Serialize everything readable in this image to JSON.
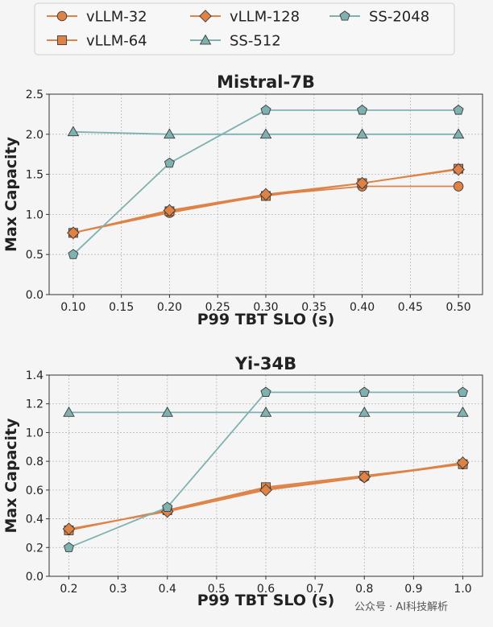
{
  "colors": {
    "vllm": "#DE8246",
    "ss": "#7FB1B1",
    "grid": "#b9b9b9"
  },
  "legend": [
    {
      "label": "vLLM-32",
      "color": "#DE8246",
      "marker": "circle"
    },
    {
      "label": "vLLM-64",
      "color": "#DE8246",
      "marker": "square"
    },
    {
      "label": "vLLM-128",
      "color": "#DE8246",
      "marker": "diamond"
    },
    {
      "label": "SS-512",
      "color": "#7FB1B1",
      "marker": "triangle"
    },
    {
      "label": "SS-2048",
      "color": "#7FB1B1",
      "marker": "pentagon"
    }
  ],
  "watermark": "公众号 · AI科技解析",
  "chart_data": [
    {
      "type": "line",
      "title": "Mistral-7B",
      "xlabel": "P99 TBT SLO (s)",
      "ylabel": "Max Capacity",
      "x": [
        0.1,
        0.2,
        0.3,
        0.4,
        0.5
      ],
      "xticks": [
        "0.10",
        "0.15",
        "0.20",
        "0.25",
        "0.30",
        "0.35",
        "0.40",
        "0.45",
        "0.50"
      ],
      "xtick_values": [
        0.1,
        0.15,
        0.2,
        0.25,
        0.3,
        0.35,
        0.4,
        0.45,
        0.5
      ],
      "yticks": [
        "0.0",
        "0.5",
        "1.0",
        "1.5",
        "2.0",
        "2.5"
      ],
      "ytick_values": [
        0,
        0.5,
        1.0,
        1.5,
        2.0,
        2.5
      ],
      "xlim": [
        0.075,
        0.525
      ],
      "ylim": [
        0,
        2.5
      ],
      "grid": true,
      "series": [
        {
          "name": "vLLM-32",
          "marker": "circle",
          "values": [
            0.77,
            1.02,
            1.24,
            1.35,
            1.35
          ]
        },
        {
          "name": "vLLM-64",
          "marker": "square",
          "values": [
            0.77,
            1.04,
            1.23,
            1.39,
            1.57
          ]
        },
        {
          "name": "vLLM-128",
          "marker": "diamond",
          "values": [
            0.77,
            1.05,
            1.25,
            1.39,
            1.56
          ]
        },
        {
          "name": "SS-512",
          "marker": "triangle",
          "values": [
            2.03,
            2.0,
            2.0,
            2.0,
            2.0
          ]
        },
        {
          "name": "SS-2048",
          "marker": "pentagon",
          "values": [
            0.5,
            1.64,
            2.3,
            2.3,
            2.3
          ]
        }
      ]
    },
    {
      "type": "line",
      "title": "Yi-34B",
      "xlabel": "P99 TBT SLO (s)",
      "ylabel": "Max Capacity",
      "x": [
        0.2,
        0.4,
        0.6,
        0.8,
        1.0
      ],
      "xticks": [
        "0.2",
        "0.3",
        "0.4",
        "0.5",
        "0.6",
        "0.7",
        "0.8",
        "0.9",
        "1.0"
      ],
      "xtick_values": [
        0.2,
        0.3,
        0.4,
        0.5,
        0.6,
        0.7,
        0.8,
        0.9,
        1.0
      ],
      "yticks": [
        "0.0",
        "0.2",
        "0.4",
        "0.6",
        "0.8",
        "1.0",
        "1.2",
        "1.4"
      ],
      "ytick_values": [
        0,
        0.2,
        0.4,
        0.6,
        0.8,
        1.0,
        1.2,
        1.4
      ],
      "xlim": [
        0.16,
        1.04
      ],
      "ylim": [
        0,
        1.4
      ],
      "grid": true,
      "series": [
        {
          "name": "vLLM-32",
          "marker": "circle",
          "values": [
            0.32,
            0.46,
            0.61,
            0.69,
            0.78
          ]
        },
        {
          "name": "vLLM-64",
          "marker": "square",
          "values": [
            0.32,
            0.46,
            0.62,
            0.7,
            0.78
          ]
        },
        {
          "name": "vLLM-128",
          "marker": "diamond",
          "values": [
            0.33,
            0.45,
            0.6,
            0.69,
            0.79
          ]
        },
        {
          "name": "SS-512",
          "marker": "triangle",
          "values": [
            1.14,
            1.14,
            1.14,
            1.14,
            1.14
          ]
        },
        {
          "name": "SS-2048",
          "marker": "pentagon",
          "values": [
            0.2,
            0.48,
            1.28,
            1.28,
            1.28
          ]
        }
      ]
    }
  ]
}
